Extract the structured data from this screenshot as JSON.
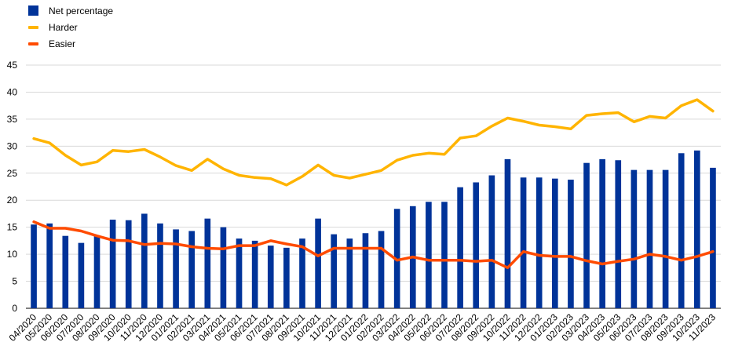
{
  "chart_data": {
    "type": "bar",
    "title": "",
    "xlabel": "",
    "ylabel": "",
    "ylim": [
      0,
      45
    ],
    "yticks": [
      "0",
      "5",
      "10",
      "15",
      "20",
      "25",
      "30",
      "35",
      "40",
      "45"
    ],
    "grid": true,
    "legend_position": "top-left",
    "categories": [
      "04/2020",
      "05/2020",
      "06/2020",
      "07/2020",
      "08/2020",
      "09/2020",
      "10/2020",
      "11/2020",
      "12/2020",
      "01/2021",
      "02/2021",
      "03/2021",
      "04/2021",
      "05/2021",
      "06/2021",
      "07/2021",
      "08/2021",
      "09/2021",
      "10/2021",
      "11/2021",
      "12/2021",
      "01/2022",
      "02/2022",
      "03/2022",
      "04/2022",
      "05/2022",
      "06/2022",
      "07/2022",
      "08/2022",
      "09/2022",
      "10/2022",
      "11/2022",
      "12/2022",
      "01/2023",
      "02/2023",
      "03/2023",
      "04/2023",
      "05/2023",
      "06/2023",
      "07/2023",
      "08/2023",
      "09/2023",
      "10/2023",
      "11/2023"
    ],
    "series": [
      {
        "name": "Net percentage",
        "type": "bar",
        "color": "#003399",
        "values": [
          15.5,
          15.7,
          13.4,
          12.1,
          13.5,
          16.4,
          16.3,
          17.5,
          15.7,
          14.6,
          14.3,
          16.6,
          15.0,
          12.9,
          12.5,
          11.6,
          11.2,
          12.9,
          16.6,
          13.7,
          12.9,
          13.9,
          14.3,
          18.4,
          18.9,
          19.7,
          19.7,
          22.4,
          23.3,
          24.6,
          27.6,
          24.2,
          24.2,
          24.0,
          23.8,
          26.9,
          27.6,
          27.4,
          25.6,
          25.6,
          25.6,
          28.7,
          29.2,
          26.0
        ]
      },
      {
        "name": "Harder",
        "type": "line",
        "color": "#FFB400",
        "values": [
          31.4,
          30.6,
          28.3,
          26.5,
          27.1,
          29.2,
          29.0,
          29.4,
          28.0,
          26.4,
          25.5,
          27.6,
          25.8,
          24.6,
          24.2,
          24.0,
          22.8,
          24.4,
          26.5,
          24.6,
          24.1,
          24.8,
          25.5,
          27.4,
          28.3,
          28.7,
          28.5,
          31.5,
          31.9,
          33.7,
          35.2,
          34.6,
          33.9,
          33.6,
          33.2,
          35.7,
          36.0,
          36.2,
          34.5,
          35.5,
          35.2,
          37.5,
          38.6,
          36.5
        ]
      },
      {
        "name": "Easier",
        "type": "line",
        "color": "#FF4B00",
        "values": [
          16.0,
          14.8,
          14.8,
          14.3,
          13.4,
          12.6,
          12.5,
          11.8,
          12.0,
          11.9,
          11.4,
          11.1,
          11.0,
          11.6,
          11.6,
          12.5,
          11.9,
          11.4,
          9.7,
          11.1,
          11.1,
          11.1,
          11.1,
          8.9,
          9.5,
          8.9,
          8.9,
          8.9,
          8.7,
          8.9,
          7.5,
          10.5,
          9.8,
          9.6,
          9.6,
          8.8,
          8.2,
          8.7,
          9.1,
          10.0,
          9.6,
          8.9,
          9.6,
          10.5
        ]
      }
    ]
  }
}
